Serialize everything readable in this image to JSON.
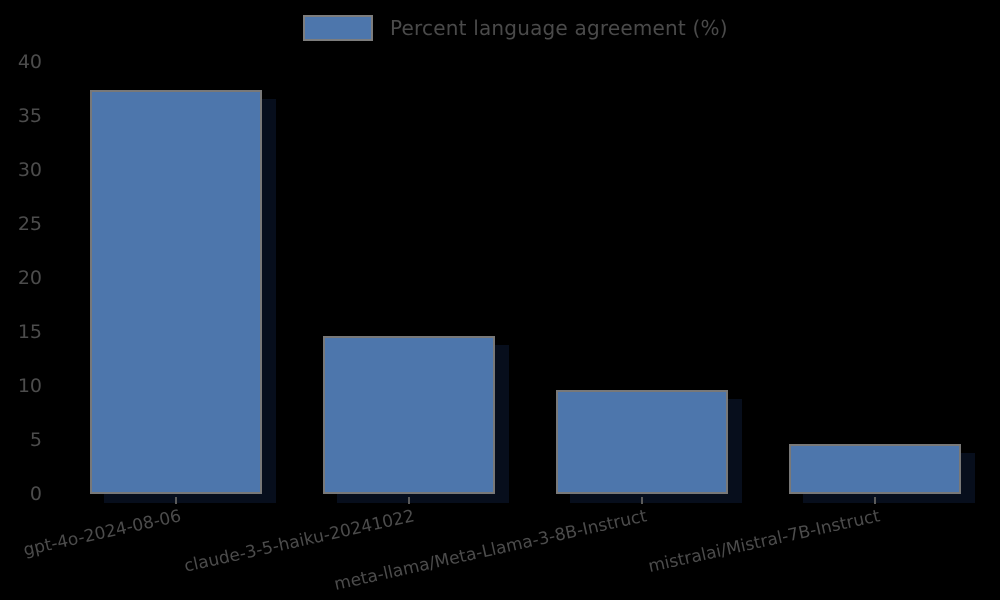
{
  "chart_data": {
    "type": "bar",
    "title": "",
    "xlabel": "",
    "ylabel": "",
    "legend": {
      "position": "top-center",
      "entries": [
        {
          "label": "Percent language agreement (%)",
          "color": "#4d76ac"
        }
      ]
    },
    "categories": [
      "gpt-4o-2024-08-06",
      "claude-3-5-haiku-20241022",
      "meta-llama/Meta-Llama-3-8B-Instruct",
      "mistralai/Mistral-7B-Instruct"
    ],
    "values": [
      37.4,
      14.6,
      9.6,
      4.6
    ],
    "ylim": [
      0,
      40
    ],
    "yticks": [
      0,
      5,
      10,
      15,
      20,
      25,
      30,
      35,
      40
    ],
    "x_tick_rotation_deg": 12.5,
    "grid": false,
    "colors": {
      "background": "#000000",
      "bar_fill": "#4d76ac",
      "bar_edge": "#787878",
      "bar_shadow": "#070e1c",
      "text": "#4c4c4c"
    }
  }
}
